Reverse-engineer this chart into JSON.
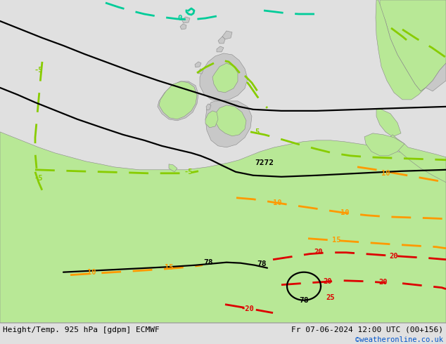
{
  "title_left": "Height/Temp. 925 hPa [gdpm] ECMWF",
  "title_right": "Fr 07-06-2024 12:00 UTC (00+156)",
  "credit": "©weatheronline.co.uk",
  "sea_color": "#e0e0e0",
  "land_green": "#b8e896",
  "land_gray": "#c8c8c8",
  "fig_width": 6.34,
  "fig_height": 4.9,
  "dpi": 100,
  "bar_color": "#e8e8e8",
  "cyan_color": "#00cc99",
  "green_color": "#88cc00",
  "orange_color": "#ff9900",
  "red_color": "#dd0000",
  "black_color": "#000000"
}
